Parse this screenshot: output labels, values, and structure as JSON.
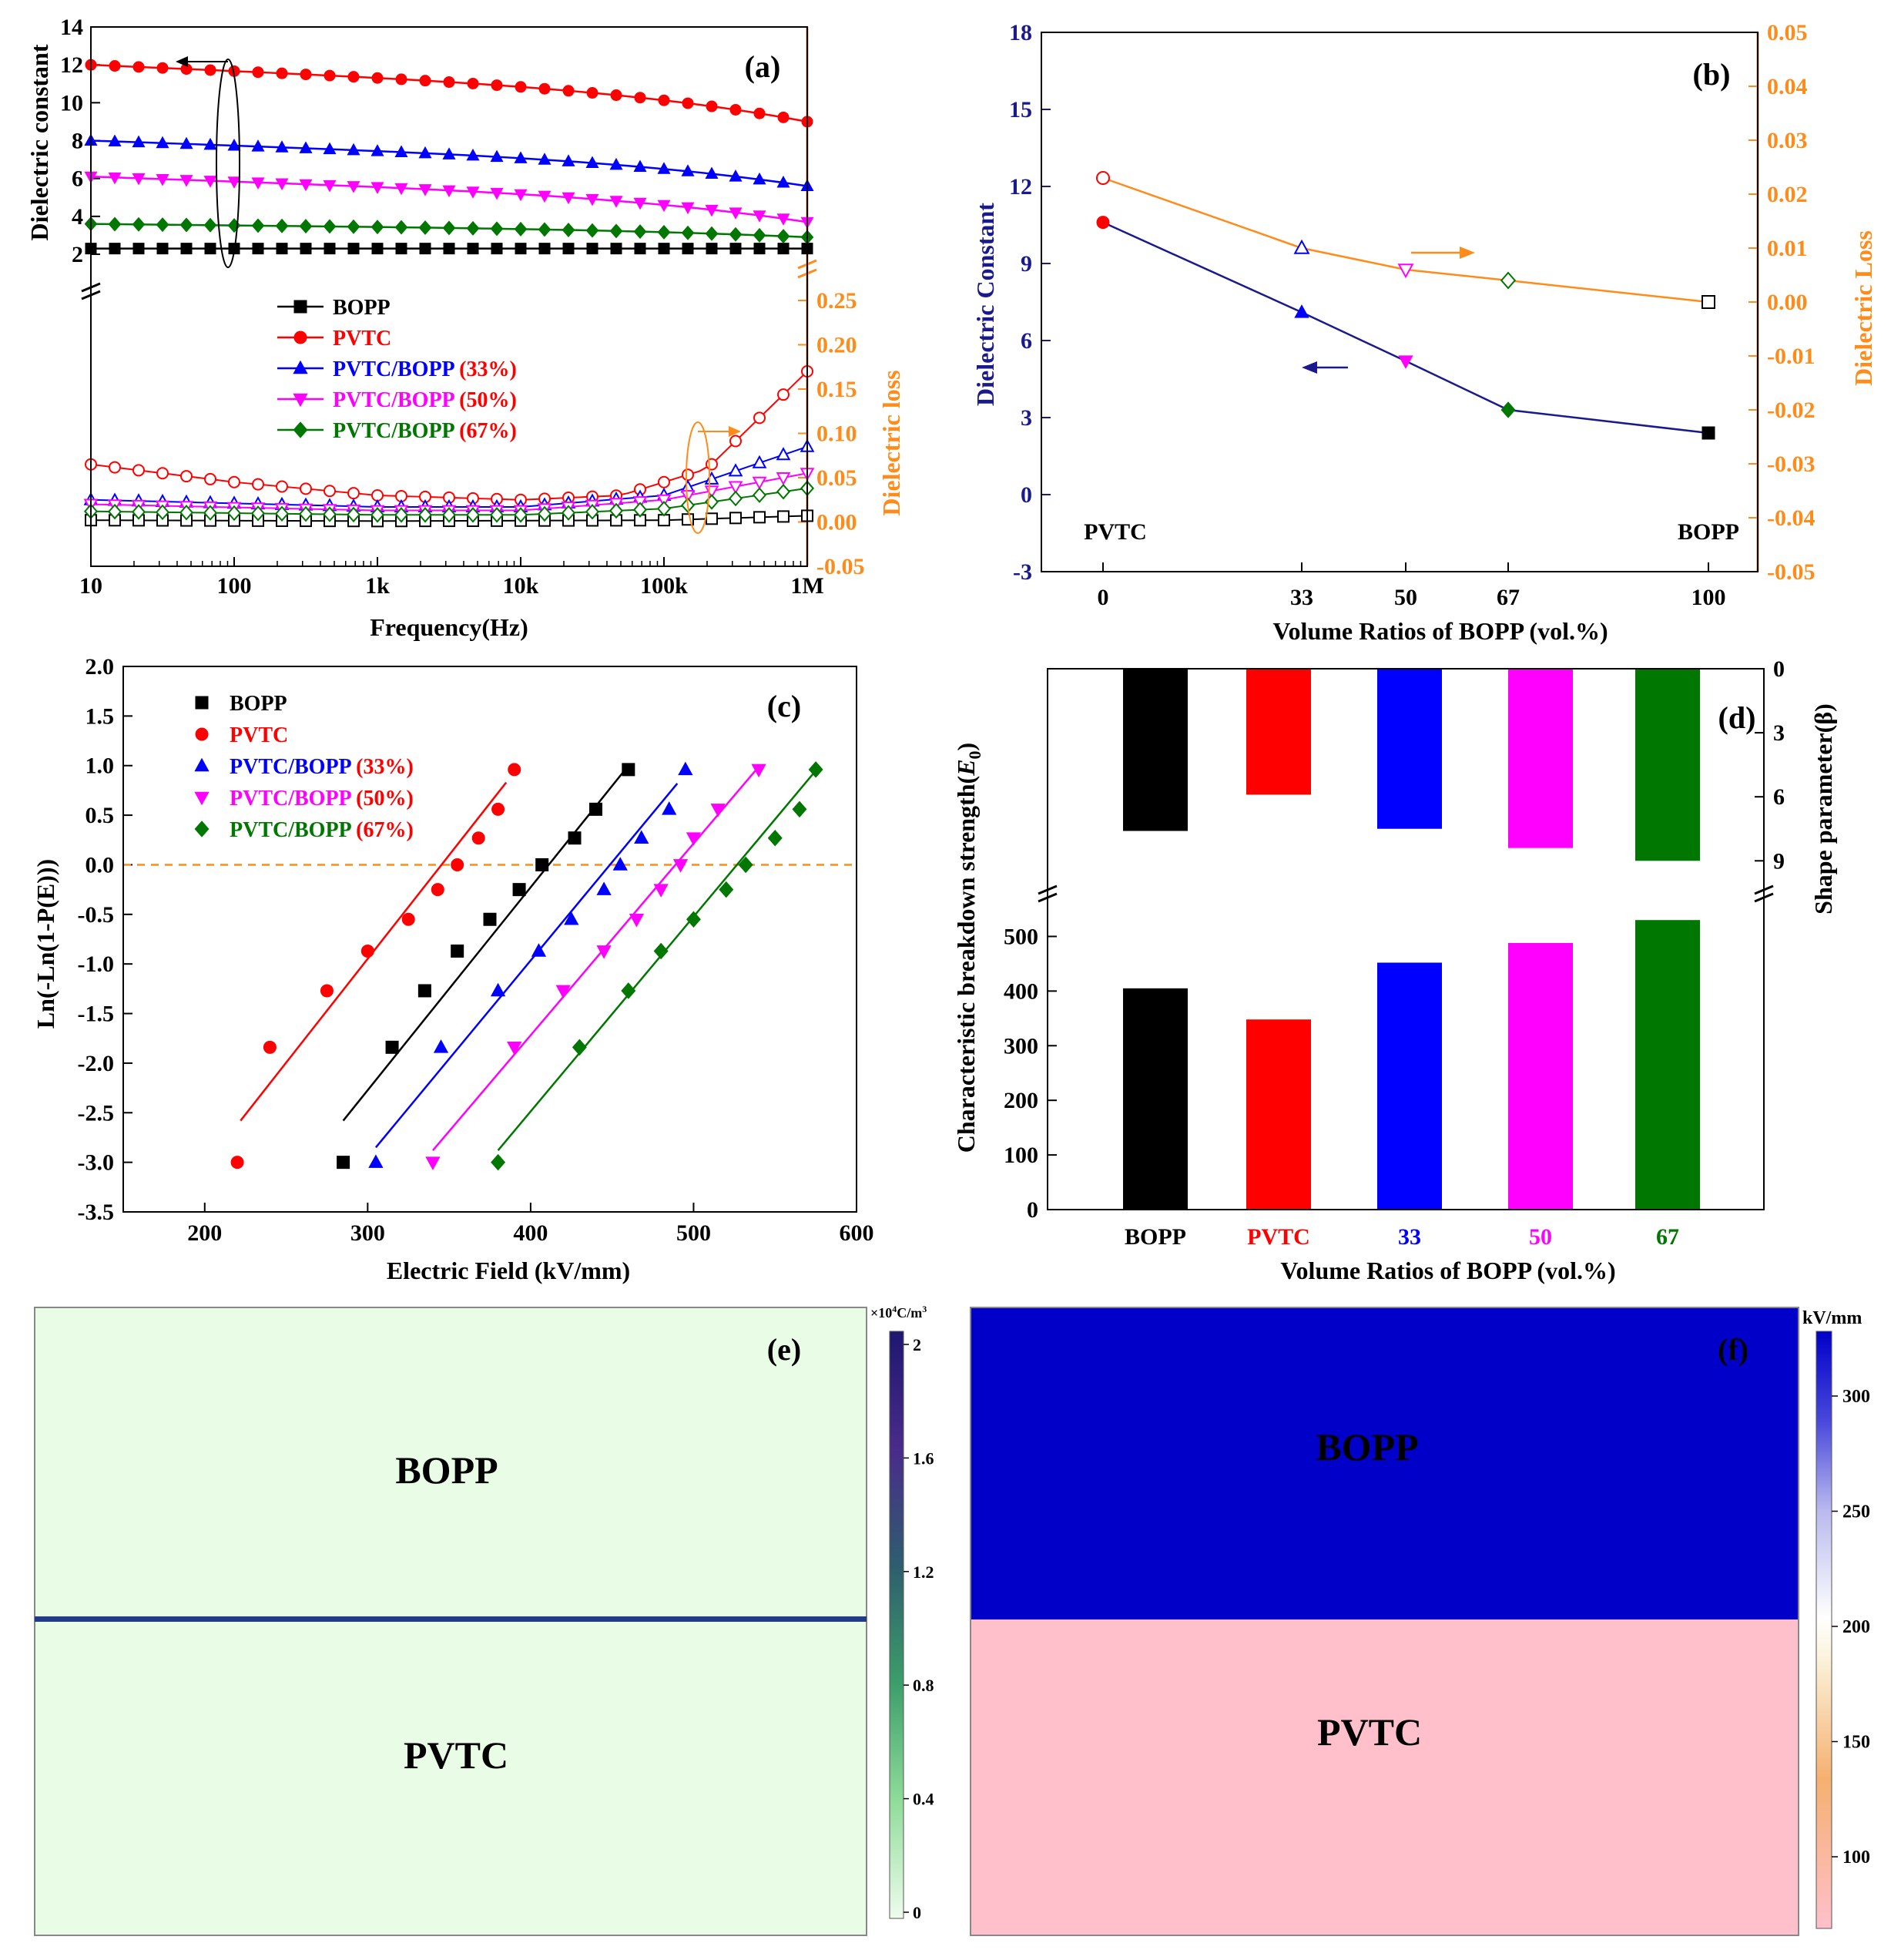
{
  "chart_data": [
    {
      "panel": "(a)",
      "type": "line",
      "xlabel": "Frequency(Hz)",
      "xscale": "log",
      "xlim": [
        10,
        1000000
      ],
      "x_tick_labels": [
        "10",
        "100",
        "1k",
        "10k",
        "100k",
        "1M"
      ],
      "ylabel_left": "Dielectric constant",
      "ylim_left": [
        2,
        14
      ],
      "y_ticks_left": [
        2,
        4,
        6,
        8,
        10,
        12,
        14
      ],
      "ylabel_right": "Dielectric loss",
      "ylim_right": [
        -0.05,
        0.25
      ],
      "y_ticks_right": [
        "-0.05",
        "0.00",
        "0.05",
        "0.10",
        "0.15",
        "0.20",
        "0.25"
      ],
      "legend": [
        "BOPP",
        "PVTC",
        "PVTC/BOPP",
        "PVTC/BOPP",
        "PVTC/BOPP"
      ],
      "legend_pct": [
        "(33%)",
        "(50%)",
        "(67%)"
      ],
      "series_constant": [
        {
          "name": "BOPP",
          "color": "#000000",
          "marker": "square",
          "start": 2.3,
          "end": 2.3
        },
        {
          "name": "PVTC",
          "color": "#ff0000",
          "marker": "circle",
          "start": 12.0,
          "end": 9.0
        },
        {
          "name": "PVTC/BOPP (33%)",
          "color": "#0000ff",
          "marker": "triangle",
          "start": 8.0,
          "end": 5.6
        },
        {
          "name": "PVTC/BOPP (50%)",
          "color": "#ff00ff",
          "marker": "triangle-down",
          "start": 6.1,
          "end": 3.7
        },
        {
          "name": "PVTC/BOPP (67%)",
          "color": "#007700",
          "marker": "diamond",
          "start": 3.6,
          "end": 2.9
        }
      ],
      "series_loss": [
        {
          "name": "BOPP",
          "color": "#000000",
          "marker": "square",
          "points": [
            [
              10,
              0.002
            ],
            [
              1000,
              0.001
            ],
            [
              100000,
              0.002
            ],
            [
              1000000,
              0.007
            ]
          ]
        },
        {
          "name": "PVTC",
          "color": "#ff0000",
          "marker": "circle",
          "points": [
            [
              10,
              0.065
            ],
            [
              100,
              0.045
            ],
            [
              1000,
              0.03
            ],
            [
              10000,
              0.025
            ],
            [
              50000,
              0.03
            ],
            [
              200000,
              0.06
            ],
            [
              1000000,
              0.17
            ]
          ]
        },
        {
          "name": "PVTC/BOPP (33%)",
          "color": "#0000ff",
          "marker": "triangle",
          "points": [
            [
              10,
              0.025
            ],
            [
              1000,
              0.017
            ],
            [
              10000,
              0.017
            ],
            [
              100000,
              0.03
            ],
            [
              1000000,
              0.085
            ]
          ]
        },
        {
          "name": "PVTC/BOPP (50%)",
          "color": "#ff00ff",
          "marker": "triangle-down",
          "points": [
            [
              10,
              0.02
            ],
            [
              1000,
              0.013
            ],
            [
              10000,
              0.013
            ],
            [
              100000,
              0.025
            ],
            [
              1000000,
              0.055
            ]
          ]
        },
        {
          "name": "PVTC/BOPP (67%)",
          "color": "#007700",
          "marker": "diamond",
          "points": [
            [
              10,
              0.012
            ],
            [
              1000,
              0.008
            ],
            [
              10000,
              0.008
            ],
            [
              100000,
              0.015
            ],
            [
              1000000,
              0.038
            ]
          ]
        }
      ]
    },
    {
      "panel": "(b)",
      "type": "line",
      "xlabel": "Volume Ratios of BOPP (vol.%)",
      "x_tick_labels": [
        "0",
        "33",
        "50",
        "67",
        "100"
      ],
      "ylabel_left": "Dielectric Constant",
      "ylim_left": [
        -3,
        18
      ],
      "y_ticks_left": [
        -3,
        0,
        3,
        6,
        9,
        12,
        15,
        18
      ],
      "ylabel_right": "Dielectric Loss",
      "ylim_right": [
        -0.05,
        0.05
      ],
      "y_ticks_right": [
        "-0.05",
        "-0.04",
        "-0.03",
        "-0.02",
        "-0.01",
        "0.00",
        "0.01",
        "0.02",
        "0.03",
        "0.04",
        "0.05"
      ],
      "annotations": [
        "PVTC",
        "BOPP"
      ],
      "x": [
        0,
        33,
        50,
        67,
        100
      ],
      "constant": [
        10.6,
        7.1,
        5.2,
        3.3,
        2.4
      ],
      "loss": [
        0.023,
        0.01,
        0.006,
        0.004,
        0.0
      ],
      "point_colors": [
        "#ff0000",
        "#0000ff",
        "#ff00ff",
        "#007700",
        "#000000"
      ],
      "point_markers": [
        "circle",
        "triangle",
        "triangle-down",
        "diamond",
        "square"
      ]
    },
    {
      "panel": "(c)",
      "type": "scatter",
      "xlabel": "Electric Field (kV/mm)",
      "ylabel": "Ln(-Ln(1-P(E)))",
      "xlim": [
        150,
        600
      ],
      "x_ticks": [
        200,
        300,
        400,
        500,
        600
      ],
      "ylim": [
        -3.5,
        2.0
      ],
      "y_ticks": [
        "-3.5",
        "-3.0",
        "-2.5",
        "-2.0",
        "-1.5",
        "-1.0",
        "-0.5",
        "0.0",
        "0.5",
        "1.0",
        "1.5",
        "2.0"
      ],
      "legend": [
        "BOPP",
        "PVTC",
        "PVTC/BOPP",
        "PVTC/BOPP",
        "PVTC/BOPP"
      ],
      "legend_pct": [
        "(33%)",
        "(50%)",
        "(67%)"
      ],
      "y_levels": [
        -3.0,
        -1.84,
        -1.27,
        -0.87,
        -0.55,
        -0.25,
        0.0,
        0.27,
        0.56,
        0.96
      ],
      "series": [
        {
          "name": "BOPP",
          "color": "#000000",
          "marker": "square",
          "x": [
            285,
            315,
            335,
            355,
            375,
            393,
            407,
            427,
            440,
            460
          ],
          "fit": [
            [
              285,
              -2.58
            ],
            [
              460,
              1.0
            ]
          ]
        },
        {
          "name": "PVTC",
          "color": "#ff0000",
          "marker": "circle",
          "x": [
            220,
            240,
            275,
            300,
            325,
            343,
            355,
            368,
            380,
            390
          ],
          "fit": [
            [
              222,
              -2.58
            ],
            [
              385,
              0.83
            ]
          ]
        },
        {
          "name": "PVTC/BOPP (33%)",
          "color": "#0000ff",
          "marker": "triangle",
          "x": [
            305,
            345,
            380,
            405,
            425,
            445,
            455,
            468,
            485,
            495
          ],
          "fit": [
            [
              305,
              -2.85
            ],
            [
              490,
              0.82
            ]
          ]
        },
        {
          "name": "PVTC/BOPP (50%)",
          "color": "#ff00ff",
          "marker": "triangle-down",
          "x": [
            340,
            390,
            420,
            445,
            465,
            480,
            492,
            500,
            515,
            540
          ],
          "fit": [
            [
              340,
              -2.88
            ],
            [
              538,
              0.95
            ]
          ]
        },
        {
          "name": "PVTC/BOPP (67%)",
          "color": "#007700",
          "marker": "diamond",
          "x": [
            380,
            430,
            460,
            480,
            500,
            520,
            532,
            550,
            565,
            575
          ],
          "fit": [
            [
              380,
              -2.88
            ],
            [
              575,
              0.95
            ]
          ]
        }
      ]
    },
    {
      "panel": "(d)",
      "type": "bar",
      "xlabel": "Volume Ratios of BOPP (vol.%)",
      "categories": [
        "BOPP",
        "PVTC",
        "33",
        "50",
        "67"
      ],
      "category_colors": [
        "#000000",
        "#ff0000",
        "#0000ff",
        "#ff00ff",
        "#007700"
      ],
      "colors": [
        "#000000",
        "#ff0000",
        "#0000ff",
        "#ff00ff",
        "#007700"
      ],
      "ylabel_left": "Characteristic breakdown strength(",
      "ylabel_left_symbol": "E",
      "ylabel_left_sub": "0",
      "ylim_left": [
        0,
        550
      ],
      "y_ticks_left": [
        0,
        100,
        200,
        300,
        400,
        500
      ],
      "breakdown": [
        405,
        348,
        452,
        488,
        530
      ],
      "ylabel_right": "Shape parameter(β)",
      "ylim_right": [
        0,
        10
      ],
      "y_ticks_right": [
        0,
        3,
        6,
        9
      ],
      "shape": [
        7.6,
        5.9,
        7.5,
        8.4,
        9.0
      ]
    }
  ],
  "panels": {
    "a": {
      "label": "(a)"
    },
    "b": {
      "label": "(b)"
    },
    "c": {
      "label": "(c)"
    },
    "d": {
      "label": "(d)"
    },
    "e": {
      "label": "(e)",
      "top_layer": "BOPP",
      "bottom_layer": "PVTC",
      "colorbar_unit_prefix": "×10",
      "colorbar_unit_exp": "4",
      "colorbar_unit_suffix": "C/m",
      "colorbar_unit_exp2": "3",
      "colorbar_ticks": [
        "0",
        "0.4",
        "0.8",
        "1.2",
        "1.6",
        "2"
      ],
      "colors": {
        "fill": "#e9fce6",
        "interface": "#223a8a"
      }
    },
    "f": {
      "label": "(f)",
      "top_layer": "BOPP",
      "bottom_layer": "PVTC",
      "colorbar_unit": "kV/mm",
      "colorbar_ticks": [
        "100",
        "150",
        "200",
        "250",
        "300"
      ],
      "colors": {
        "top": "#0000c8",
        "bottom": "#ffc0cb"
      }
    }
  }
}
